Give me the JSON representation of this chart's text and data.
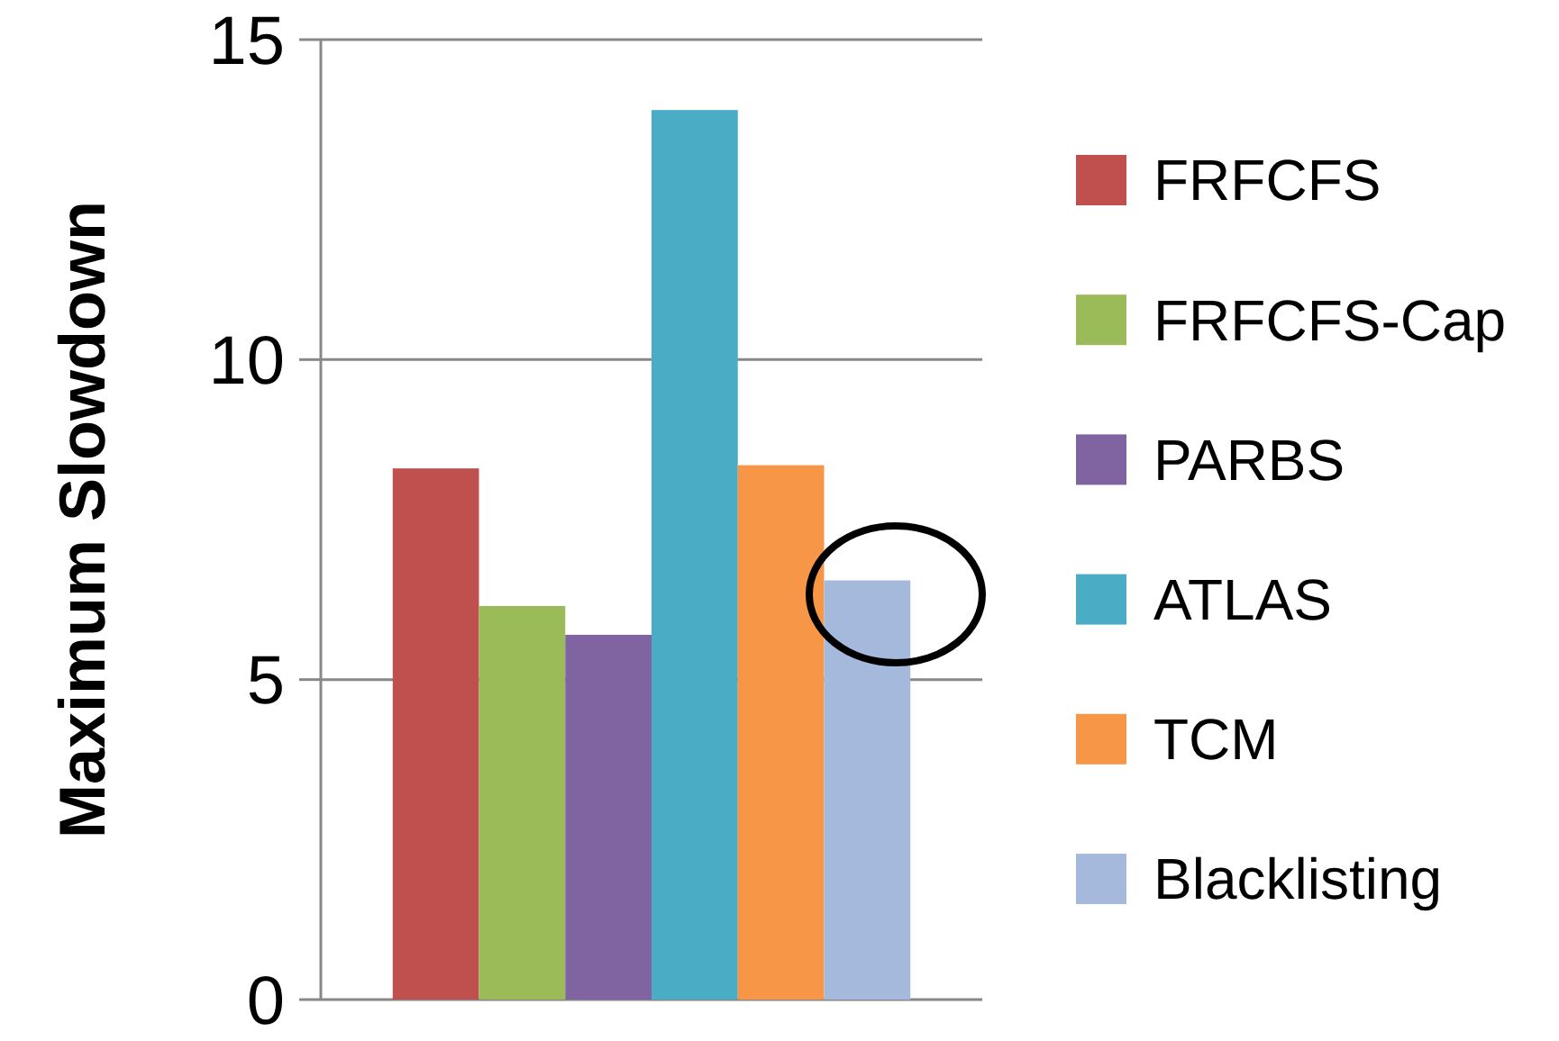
{
  "chart_data": {
    "type": "bar",
    "ylabel": "Maximum Slowdown",
    "categories": [
      null
    ],
    "series": [
      {
        "name": "FRFCFS",
        "color": "#c0504d",
        "values": [
          8.3
        ]
      },
      {
        "name": "FRFCFS-Cap",
        "color": "#9bbb59",
        "values": [
          6.15
        ]
      },
      {
        "name": "PARBS",
        "color": "#8064a2",
        "values": [
          5.7
        ]
      },
      {
        "name": "ATLAS",
        "color": "#4bacc6",
        "values": [
          13.9
        ]
      },
      {
        "name": "TCM",
        "color": "#f79646",
        "values": [
          8.35
        ]
      },
      {
        "name": "Blacklisting",
        "color": "#a5b9dd",
        "values": [
          6.55
        ]
      }
    ],
    "ylim": [
      0,
      15
    ],
    "yticks": [
      0,
      5,
      10,
      15
    ],
    "grid": "y",
    "legend": "right"
  }
}
